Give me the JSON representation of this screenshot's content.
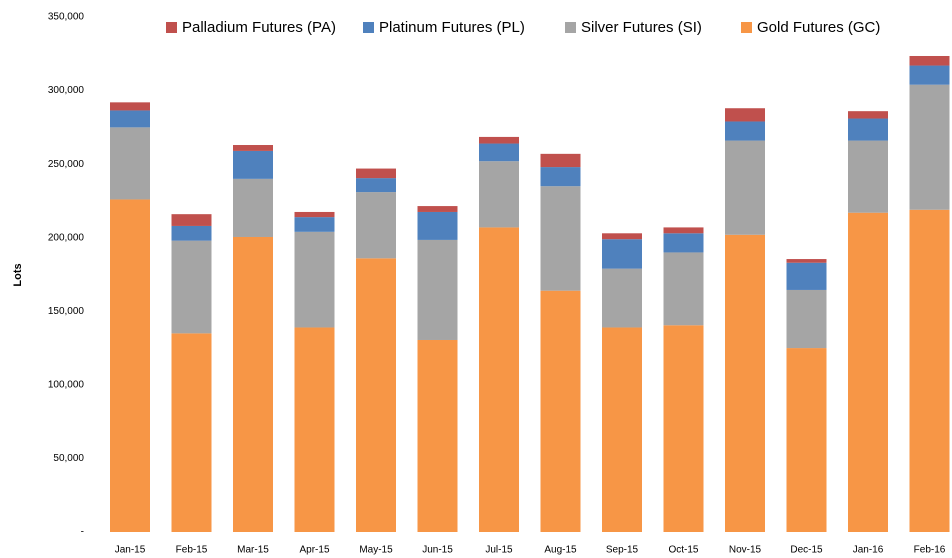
{
  "chart_data": {
    "type": "stacked_bar",
    "y_label": "Lots",
    "categories": [
      "Jan-15",
      "Feb-15",
      "Mar-15",
      "Apr-15",
      "May-15",
      "Jun-15",
      "Jul-15",
      "Aug-15",
      "Sep-15",
      "Oct-15",
      "Nov-15",
      "Dec-15",
      "Jan-16",
      "Feb-16"
    ],
    "series": [
      {
        "name": "Gold Futures (GC)",
        "color": "#f79646",
        "values": [
          226000,
          135000,
          200500,
          139000,
          186000,
          130500,
          207000,
          164000,
          139000,
          140500,
          202000,
          125000,
          217000,
          219000
        ]
      },
      {
        "name": "Silver Futures (SI)",
        "color": "#a5a5a5",
        "values": [
          49000,
          63000,
          39500,
          65000,
          45000,
          68000,
          45000,
          71000,
          40000,
          49500,
          64000,
          39500,
          49000,
          85000
        ]
      },
      {
        "name": "Platinum Futures (PL)",
        "color": "#4f81bd",
        "values": [
          11500,
          10000,
          19000,
          10000,
          9500,
          19000,
          12000,
          13000,
          20000,
          13000,
          13000,
          18500,
          15000,
          13000
        ]
      },
      {
        "name": "Palladium Futures (PA)",
        "color": "#c0504d",
        "values": [
          5500,
          8000,
          4000,
          3500,
          6500,
          4000,
          4500,
          9000,
          4000,
          4000,
          9000,
          2500,
          5000,
          6500
        ]
      }
    ],
    "ylim": [
      0,
      350000
    ],
    "yticks": [
      {
        "value": 0,
        "label": "-"
      },
      {
        "value": 50000,
        "label": "50,000"
      },
      {
        "value": 100000,
        "label": "100,000"
      },
      {
        "value": 150000,
        "label": "150,000"
      },
      {
        "value": 200000,
        "label": "200,000"
      },
      {
        "value": 250000,
        "label": "250,000"
      },
      {
        "value": 300000,
        "label": "300,000"
      },
      {
        "value": 350000,
        "label": "350,000"
      }
    ],
    "grid": false,
    "legend": "top"
  }
}
